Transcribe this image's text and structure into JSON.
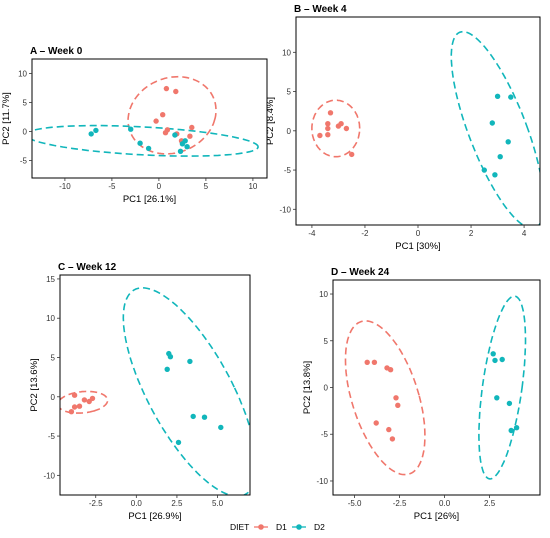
{
  "colors": {
    "D1": "#F0776C",
    "D2": "#11B6BB",
    "frame": "#000000"
  },
  "legend": {
    "title": "DIET",
    "entries": [
      "D1",
      "D2"
    ]
  },
  "chart_data": [
    {
      "type": "scatter",
      "title": "A – Week 0",
      "xlabel": "PC1 [26.1%]",
      "ylabel": "PC2 [11.7%]",
      "xlim": [
        -13.5,
        11.5
      ],
      "ylim": [
        -8,
        12.5
      ],
      "xticks": [
        -10,
        -5,
        0,
        5,
        10
      ],
      "yticks": [
        -5,
        0,
        5,
        10
      ],
      "grid": false,
      "series": [
        {
          "name": "D1",
          "points": [
            [
              0.8,
              7.4
            ],
            [
              1.8,
              6.9
            ],
            [
              0.4,
              2.9
            ],
            [
              -0.3,
              1.8
            ],
            [
              0.9,
              0.3
            ],
            [
              1.9,
              -0.4
            ],
            [
              3.3,
              -0.8
            ],
            [
              3.5,
              0.7
            ],
            [
              0.7,
              -0.2
            ],
            [
              2.4,
              -1.6
            ]
          ]
        },
        {
          "name": "D2",
          "points": [
            [
              -7.2,
              -0.4
            ],
            [
              -6.7,
              0.2
            ],
            [
              -3.0,
              0.4
            ],
            [
              -2.0,
              -2.0
            ],
            [
              -1.1,
              -2.9
            ],
            [
              1.7,
              -0.6
            ],
            [
              2.5,
              -2.1
            ],
            [
              2.8,
              -1.6
            ],
            [
              3.0,
              -2.6
            ],
            [
              2.3,
              -3.4
            ]
          ]
        }
      ],
      "ellipses": [
        {
          "group": "D1",
          "cx": 1.4,
          "cy": 2.8,
          "rx": 4.6,
          "ry": 6.7,
          "angle_deg": -10
        },
        {
          "group": "D2",
          "cx": -1.8,
          "cy": -1.6,
          "rx": 12.4,
          "ry": 2.4,
          "angle_deg": -5
        }
      ]
    },
    {
      "type": "scatter",
      "title": "B – Week 4",
      "xlabel": "PC1 [30%]",
      "ylabel": "PC2 [8.4%]",
      "xlim": [
        -4.6,
        4.6
      ],
      "ylim": [
        -12,
        14.5
      ],
      "xticks": [
        -4,
        -2,
        0,
        2,
        4
      ],
      "yticks": [
        -10,
        -5,
        0,
        5,
        10
      ],
      "grid": false,
      "series": [
        {
          "name": "D1",
          "points": [
            [
              -3.3,
              2.3
            ],
            [
              -3.4,
              0.9
            ],
            [
              -3.4,
              0.3
            ],
            [
              -3.0,
              0.6
            ],
            [
              -2.9,
              0.9
            ],
            [
              -2.7,
              0.3
            ],
            [
              -3.4,
              -0.5
            ],
            [
              -3.7,
              -0.6
            ],
            [
              -2.5,
              -3.0
            ]
          ]
        },
        {
          "name": "D2",
          "points": [
            [
              3.0,
              4.4
            ],
            [
              3.5,
              4.3
            ],
            [
              2.8,
              1.0
            ],
            [
              3.4,
              -1.4
            ],
            [
              3.1,
              -3.3
            ],
            [
              2.5,
              -5.0
            ],
            [
              2.9,
              -5.6
            ]
          ]
        }
      ],
      "ellipses": [
        {
          "group": "D1",
          "cx": -3.1,
          "cy": 0.3,
          "rx": 0.9,
          "ry": 3.6,
          "angle_deg": 0
        },
        {
          "group": "D2",
          "cx": 3.0,
          "cy": 0.1,
          "rx": 1.15,
          "ry": 12.6,
          "angle_deg": 6
        }
      ]
    },
    {
      "type": "scatter",
      "title": "C – Week 12",
      "xlabel": "PC1 [26.9%]",
      "ylabel": "PC2 [13.6%]",
      "xlim": [
        -4.7,
        7.0
      ],
      "ylim": [
        -12.5,
        15.5
      ],
      "xticks": [
        -2.5,
        0.0,
        2.5,
        5.0
      ],
      "yticks": [
        -10,
        -5,
        0,
        5,
        10,
        15
      ],
      "grid": false,
      "series": [
        {
          "name": "D1",
          "points": [
            [
              -3.8,
              0.2
            ],
            [
              -3.8,
              -1.3
            ],
            [
              -3.2,
              -0.4
            ],
            [
              -2.9,
              -0.6
            ],
            [
              -2.7,
              -0.2
            ],
            [
              -4.0,
              -1.9
            ],
            [
              -3.5,
              -1.2
            ]
          ]
        },
        {
          "name": "D2",
          "points": [
            [
              2.0,
              5.5
            ],
            [
              2.1,
              5.1
            ],
            [
              3.3,
              4.5
            ],
            [
              1.9,
              3.5
            ],
            [
              3.5,
              -2.5
            ],
            [
              4.2,
              -2.6
            ],
            [
              5.2,
              -3.9
            ],
            [
              2.6,
              -5.8
            ]
          ]
        }
      ],
      "ellipses": [
        {
          "group": "D1",
          "cx": -3.3,
          "cy": -0.7,
          "rx": 1.3,
          "ry": 1.6,
          "angle_deg": -60
        },
        {
          "group": "D2",
          "cx": 3.3,
          "cy": 0.6,
          "rx": 2.8,
          "ry": 13.6,
          "angle_deg": 13
        }
      ]
    },
    {
      "type": "scatter",
      "title": "D – Week 24",
      "xlabel": "PC1 [26%]",
      "ylabel": "PC2 [13.8%]",
      "xlim": [
        -6.2,
        5.3
      ],
      "ylim": [
        -11.5,
        11.5
      ],
      "xticks": [
        -5.0,
        -2.5,
        0.0,
        2.5
      ],
      "yticks": [
        -10,
        -5,
        0,
        5,
        10
      ],
      "grid": false,
      "series": [
        {
          "name": "D1",
          "points": [
            [
              -4.3,
              2.7
            ],
            [
              -3.9,
              2.7
            ],
            [
              -3.2,
              2.1
            ],
            [
              -3.0,
              1.9
            ],
            [
              -2.7,
              -1.1
            ],
            [
              -2.6,
              -1.9
            ],
            [
              -3.8,
              -3.8
            ],
            [
              -3.1,
              -4.5
            ],
            [
              -2.9,
              -5.5
            ]
          ]
        },
        {
          "name": "D2",
          "points": [
            [
              2.7,
              3.6
            ],
            [
              2.8,
              2.9
            ],
            [
              3.2,
              3.0
            ],
            [
              2.9,
              -1.1
            ],
            [
              3.6,
              -1.7
            ],
            [
              4.0,
              -4.3
            ],
            [
              3.7,
              -4.6
            ]
          ]
        }
      ],
      "ellipses": [
        {
          "group": "D1",
          "cx": -3.3,
          "cy": -1.1,
          "rx": 1.9,
          "ry": 8.3,
          "angle_deg": 8
        },
        {
          "group": "D2",
          "cx": 3.2,
          "cy": 0.0,
          "rx": 1.1,
          "ry": 9.8,
          "angle_deg": -4
        }
      ]
    }
  ]
}
